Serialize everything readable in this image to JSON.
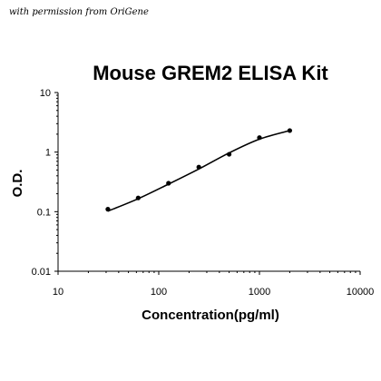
{
  "credit": "with permission from OriGene",
  "chart_data": {
    "type": "line",
    "title": "Mouse GREM2 ELISA Kit",
    "xlabel": "Concentration(pg/ml)",
    "ylabel": "O.D.",
    "xscale": "log",
    "yscale": "log",
    "xlim": [
      10,
      10000
    ],
    "ylim": [
      0.01,
      10
    ],
    "x_ticks": [
      "10",
      "100",
      "1000",
      "10000"
    ],
    "y_ticks": [
      "0.01",
      "0.1",
      "1",
      "10"
    ],
    "grid": false,
    "legend": "none",
    "series": [
      {
        "points": [
          {
            "x": 31.25,
            "y": 0.11
          },
          {
            "x": 62.5,
            "y": 0.17
          },
          {
            "x": 125,
            "y": 0.3
          },
          {
            "x": 250,
            "y": 0.56
          },
          {
            "x": 500,
            "y": 0.92
          },
          {
            "x": 1000,
            "y": 1.75
          },
          {
            "x": 2000,
            "y": 2.3
          }
        ],
        "fit_curve": [
          {
            "x": 31.25,
            "y": 0.102
          },
          {
            "x": 62.5,
            "y": 0.165
          },
          {
            "x": 125,
            "y": 0.29
          },
          {
            "x": 250,
            "y": 0.52
          },
          {
            "x": 500,
            "y": 0.97
          },
          {
            "x": 1000,
            "y": 1.65
          },
          {
            "x": 2000,
            "y": 2.3
          }
        ]
      }
    ]
  }
}
